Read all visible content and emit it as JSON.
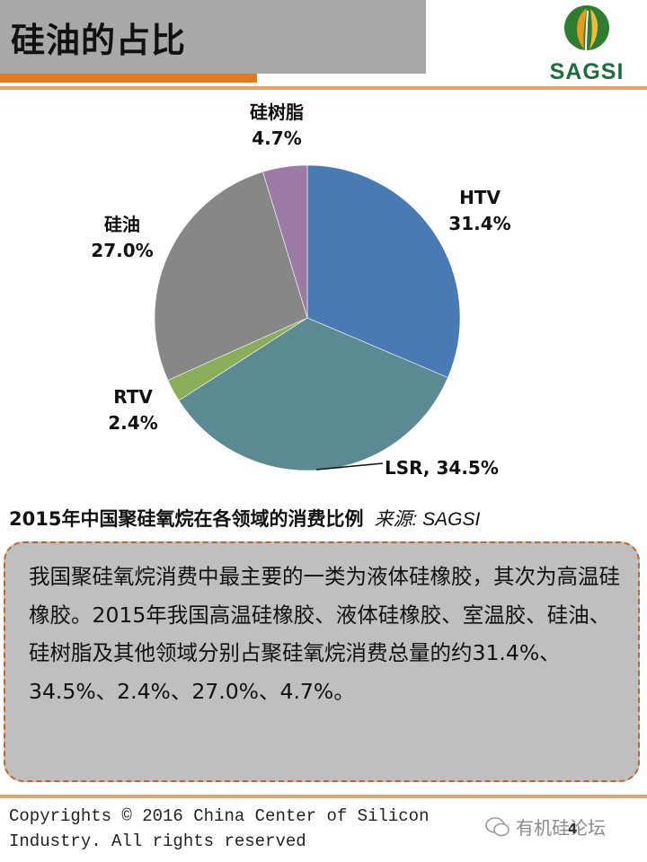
{
  "header": {
    "title": "硅油的占比",
    "logo_text": "SAGSI"
  },
  "colors": {
    "title_bg": "#a8a8a8",
    "accent": "#e07b1e",
    "box_bg": "#bfbfbf",
    "box_border": "#c4632a",
    "logo_green": "#1d6f3a"
  },
  "chart_data": {
    "type": "pie",
    "slices": [
      {
        "name": "HTV",
        "value": 31.4,
        "label": "31.4%",
        "color": "#4a7ab4"
      },
      {
        "name": "LSR",
        "value": 34.5,
        "label": "LSR, 34.5%",
        "color": "#5b8a93"
      },
      {
        "name": "RTV",
        "value": 2.4,
        "label": "2.4%",
        "color": "#8aad5a"
      },
      {
        "name": "硅油",
        "value": 27.0,
        "label": "27.0%",
        "color": "#878787"
      },
      {
        "name": "硅树脂",
        "value": 4.7,
        "label": "4.7%",
        "color": "#9b7aa3"
      }
    ]
  },
  "caption": {
    "text": "2015年中国聚硅氧烷在各领域的消费比例",
    "source": "来源: SAGSI"
  },
  "summary": "我国聚硅氧烷消费中最主要的一类为液体硅橡胶，其次为高温硅橡胶。2015年我国高温硅橡胶、液体硅橡胶、室温胶、硅油、硅树脂及其他领域分别占聚硅氧烷消费总量的约31.4%、34.5%、2.4%、27.0%、4.7%。",
  "footer": {
    "copyright": "Copyrights © 2016 China Center of Silicon Industry. All rights reserved",
    "watermark": "有机硅论坛",
    "page_number": "4"
  }
}
